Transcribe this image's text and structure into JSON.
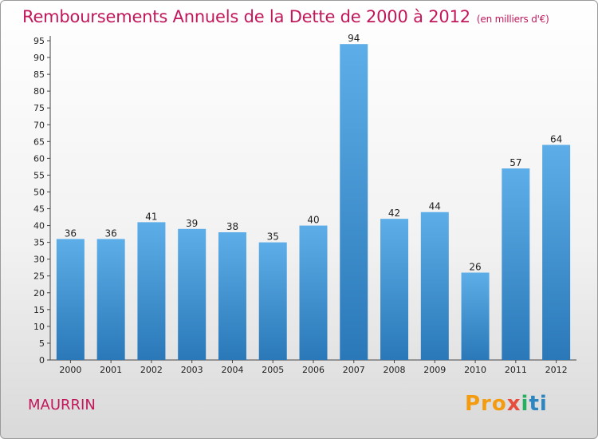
{
  "header": {
    "title": "Remboursements Annuels de la Dette de 2000 à 2012",
    "subtitle": "(en milliers d'€)"
  },
  "footer": {
    "place": "MAURRIN",
    "logo": [
      "Pro",
      "x",
      "i",
      "ti"
    ]
  },
  "colors": {
    "bar_top": "#5daee8",
    "bar_bottom": "#2a78b8",
    "title": "#c2185b"
  },
  "chart_data": {
    "type": "bar",
    "title": "Remboursements Annuels de la Dette de 2000 à 2012",
    "categories": [
      "2000",
      "2001",
      "2002",
      "2003",
      "2004",
      "2005",
      "2006",
      "2007",
      "2008",
      "2009",
      "2010",
      "2011",
      "2012"
    ],
    "values": [
      36,
      36,
      41,
      39,
      38,
      35,
      40,
      94,
      42,
      44,
      26,
      57,
      64
    ],
    "ylim": [
      0,
      95
    ],
    "yticks": [
      0,
      5,
      10,
      15,
      20,
      25,
      30,
      35,
      40,
      45,
      50,
      55,
      60,
      65,
      70,
      75,
      80,
      85,
      90,
      95
    ],
    "grid": false,
    "legend": "none"
  }
}
